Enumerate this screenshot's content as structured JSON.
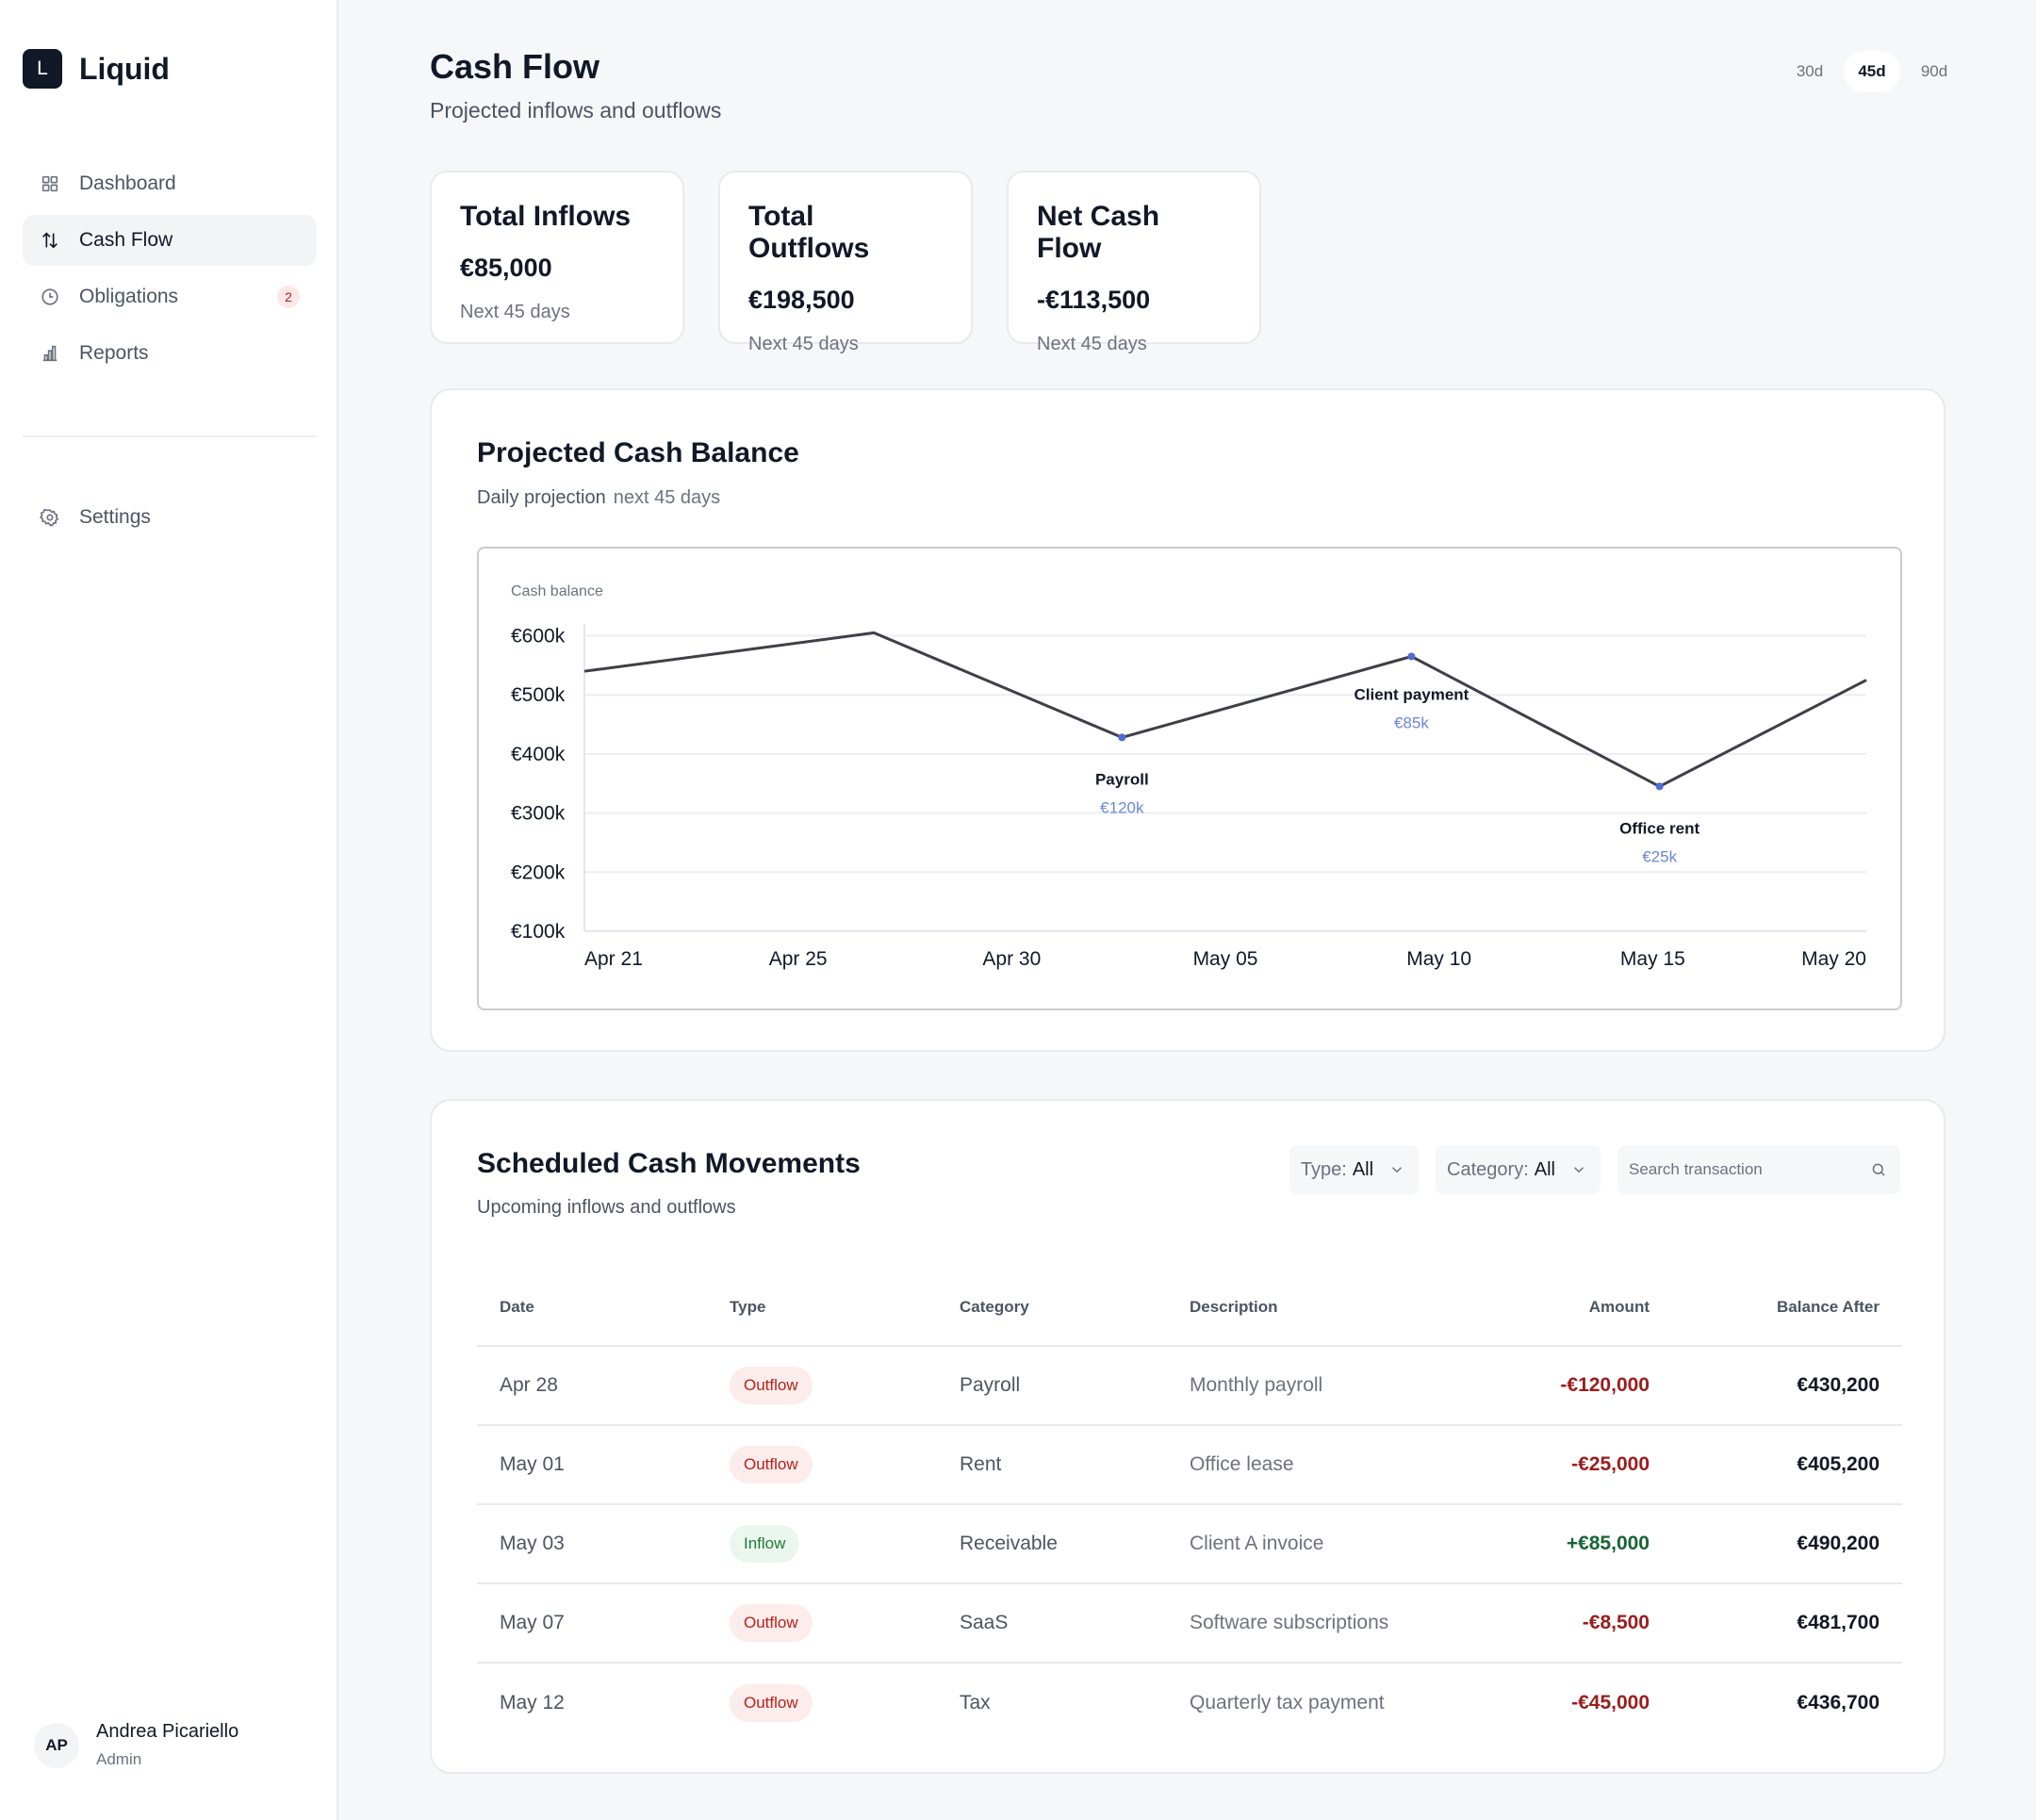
{
  "app": {
    "logo_letter": "L",
    "name": "Liquid"
  },
  "sidebar": {
    "items": [
      {
        "label": "Dashboard",
        "icon": "grid-icon",
        "active": false
      },
      {
        "label": "Cash Flow",
        "icon": "arrows-up-down-icon",
        "active": true
      },
      {
        "label": "Obligations",
        "icon": "clock-icon",
        "active": false,
        "badge": "2"
      },
      {
        "label": "Reports",
        "icon": "bar-chart-icon",
        "active": false
      }
    ],
    "settings_label": "Settings",
    "user": {
      "initials": "AP",
      "name": "Andrea Picariello",
      "role": "Admin"
    }
  },
  "header": {
    "title": "Cash Flow",
    "subtitle": "Projected inflows and outflows",
    "ranges": [
      "30d",
      "45d",
      "90d"
    ],
    "active_range": "45d"
  },
  "stats": [
    {
      "title": "Total Inflows",
      "value": "€85,000",
      "note": "Next 45 days"
    },
    {
      "title": "Total Outflows",
      "value": "€198,500",
      "note": "Next 45 days"
    },
    {
      "title": "Net Cash Flow",
      "value": "-€113,500",
      "note": "Next 45 days"
    }
  ],
  "projection": {
    "title": "Projected Cash Balance",
    "subtitle": "Daily projection",
    "subtitle_muted": "next 45 days"
  },
  "chart_data": {
    "type": "line",
    "ylabel": "Cash balance",
    "y_ticks": [
      "€600k",
      "€500k",
      "€400k",
      "€300k",
      "€200k",
      "€100k"
    ],
    "x_ticks": [
      "Apr 21",
      "Apr 25",
      "Apr 30",
      "May 05",
      "May 10",
      "May 15",
      "May 20"
    ],
    "ylim": [
      100000,
      620000
    ],
    "series": [
      {
        "x": [
          "Apr 21",
          "Apr 28",
          "May 04",
          "May 11",
          "May 17",
          "May 22"
        ],
        "values": [
          540000,
          605000,
          428000,
          565000,
          345000,
          525000
        ]
      }
    ],
    "annotations": [
      {
        "x": "May 04",
        "y": 428000,
        "label": "Payroll",
        "value": "€120k"
      },
      {
        "x": "May 11",
        "y": 565000,
        "label": "Client payment",
        "value": "€85k"
      },
      {
        "x": "May 17",
        "y": 345000,
        "label": "Office rent",
        "value": "€25k"
      }
    ],
    "grid": true,
    "colors": {
      "line": "#3f3f4a",
      "marker": "#4f6bd8",
      "annotation_value": "#6b87d8",
      "grid": "#eceef1"
    }
  },
  "movements": {
    "title": "Scheduled Cash Movements",
    "subtitle": "Upcoming inflows and outflows",
    "filters": [
      {
        "label": "Type:",
        "value": "All"
      },
      {
        "label": "Category:",
        "value": "All"
      }
    ],
    "search_placeholder": "Search transaction",
    "columns": [
      "Date",
      "Type",
      "Category",
      "Description",
      "Amount",
      "Balance After"
    ],
    "rows": [
      {
        "date": "Apr 28",
        "type": "Outflow",
        "category": "Payroll",
        "description": "Monthly payroll",
        "amount": "-€120,000",
        "balance": "€430,200"
      },
      {
        "date": "May 01",
        "type": "Outflow",
        "category": "Rent",
        "description": "Office lease",
        "amount": "-€25,000",
        "balance": "€405,200"
      },
      {
        "date": "May 03",
        "type": "Inflow",
        "category": "Receivable",
        "description": "Client A invoice",
        "amount": "+€85,000",
        "balance": "€490,200"
      },
      {
        "date": "May 07",
        "type": "Outflow",
        "category": "SaaS",
        "description": "Software subscriptions",
        "amount": "-€8,500",
        "balance": "€481,700"
      },
      {
        "date": "May 12",
        "type": "Outflow",
        "category": "Tax",
        "description": "Quarterly tax payment",
        "amount": "-€45,000",
        "balance": "€436,700"
      }
    ]
  },
  "colors": {
    "accent": "#111827",
    "negative": "#9b1c1c",
    "positive": "#166534"
  }
}
